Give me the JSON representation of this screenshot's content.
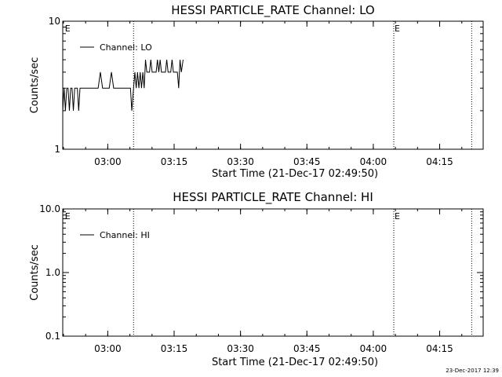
{
  "footer": {
    "timestamp": "23-Dec-2017 12:39"
  },
  "colors": {
    "foreground": "#000000",
    "background": "#ffffff"
  },
  "chart_data": [
    {
      "type": "line",
      "title": "HESSI PARTICLE_RATE Channel: LO",
      "xlabel": "Start Time (21-Dec-17 02:49:50)",
      "ylabel": "Counts/sec",
      "x_unit": "minutes after 02:49:50",
      "xlim": [
        0,
        95
      ],
      "ylim": [
        1,
        10
      ],
      "yscale": "log",
      "x_ticks": [
        {
          "x": 10.17,
          "label": "03:00"
        },
        {
          "x": 25.17,
          "label": "03:15"
        },
        {
          "x": 40.17,
          "label": "03:30"
        },
        {
          "x": 55.17,
          "label": "03:45"
        },
        {
          "x": 70.17,
          "label": "04:00"
        },
        {
          "x": 85.17,
          "label": "04:15"
        }
      ],
      "y_ticks": [
        {
          "y": 1,
          "label": "1"
        },
        {
          "y": 10,
          "label": "10"
        }
      ],
      "grid": false,
      "legend": {
        "position": "top-left",
        "entries": [
          "Channel: LO"
        ]
      },
      "event_lines": [
        {
          "x": 16.0,
          "letter": ""
        },
        {
          "x": 74.8,
          "letter": "E"
        },
        {
          "x": 92.4,
          "letter": ""
        }
      ],
      "event_letters": [
        {
          "x": 0.3,
          "letter": "E"
        },
        {
          "x": 74.8,
          "letter": "E"
        }
      ],
      "series": [
        {
          "name": "Channel: LO",
          "x": [
            0.0,
            0.3,
            0.6,
            0.9,
            1.2,
            1.5,
            1.8,
            2.1,
            2.4,
            2.7,
            3.0,
            3.3,
            3.6,
            3.9,
            4.2,
            4.6,
            5.0,
            5.5,
            6.0,
            6.5,
            7.0,
            7.5,
            8.0,
            8.5,
            9.0,
            9.5,
            10.0,
            10.5,
            11.0,
            11.5,
            12.0,
            12.5,
            13.0,
            13.5,
            14.0,
            14.5,
            15.0,
            15.3,
            15.6,
            16.0,
            16.3,
            16.6,
            16.9,
            17.2,
            17.5,
            17.8,
            18.1,
            18.4,
            18.7,
            19.0,
            19.3,
            19.6,
            19.9,
            20.2,
            20.5,
            20.8,
            21.1,
            21.4,
            21.7,
            22.0,
            22.3,
            22.6,
            22.9,
            23.2,
            23.5,
            23.8,
            24.1,
            24.4,
            24.7,
            25.0,
            25.3,
            25.6,
            25.9,
            26.2,
            26.5,
            26.8,
            27.2
          ],
          "y": [
            2,
            3,
            2,
            3,
            3,
            2,
            3,
            3,
            2,
            3,
            3,
            3,
            2,
            3,
            3,
            3,
            3,
            3,
            3,
            3,
            3,
            3,
            3,
            4,
            3,
            3,
            3,
            3,
            4,
            3,
            3,
            3,
            3,
            3,
            3,
            3,
            3,
            3,
            2,
            3,
            4,
            3,
            4,
            3,
            4,
            3,
            4,
            3,
            5,
            4,
            4,
            4,
            5,
            4,
            4,
            4,
            4,
            5,
            4,
            5,
            4,
            4,
            4,
            4,
            5,
            4,
            4,
            4,
            5,
            4,
            4,
            4,
            4,
            3,
            5,
            4,
            5
          ]
        }
      ]
    },
    {
      "type": "line",
      "title": "HESSI PARTICLE_RATE Channel: HI",
      "xlabel": "Start Time (21-Dec-17 02:49:50)",
      "ylabel": "Counts/sec",
      "x_unit": "minutes after 02:49:50",
      "xlim": [
        0,
        95
      ],
      "ylim": [
        0.1,
        10
      ],
      "yscale": "log",
      "x_ticks": [
        {
          "x": 10.17,
          "label": "03:00"
        },
        {
          "x": 25.17,
          "label": "03:15"
        },
        {
          "x": 40.17,
          "label": "03:30"
        },
        {
          "x": 55.17,
          "label": "03:45"
        },
        {
          "x": 70.17,
          "label": "04:00"
        },
        {
          "x": 85.17,
          "label": "04:15"
        }
      ],
      "y_ticks": [
        {
          "y": 0.1,
          "label": "0.1"
        },
        {
          "y": 1,
          "label": "1.0"
        },
        {
          "y": 10,
          "label": "10.0"
        }
      ],
      "grid": false,
      "legend": {
        "position": "top-left",
        "entries": [
          "Channel: HI"
        ]
      },
      "event_lines": [
        {
          "x": 16.0,
          "letter": ""
        },
        {
          "x": 74.8,
          "letter": "E"
        },
        {
          "x": 92.4,
          "letter": ""
        }
      ],
      "event_letters": [
        {
          "x": 0.3,
          "letter": "E"
        },
        {
          "x": 74.8,
          "letter": "E"
        }
      ],
      "series": [
        {
          "name": "Channel: HI",
          "x": [],
          "y": []
        }
      ]
    }
  ]
}
